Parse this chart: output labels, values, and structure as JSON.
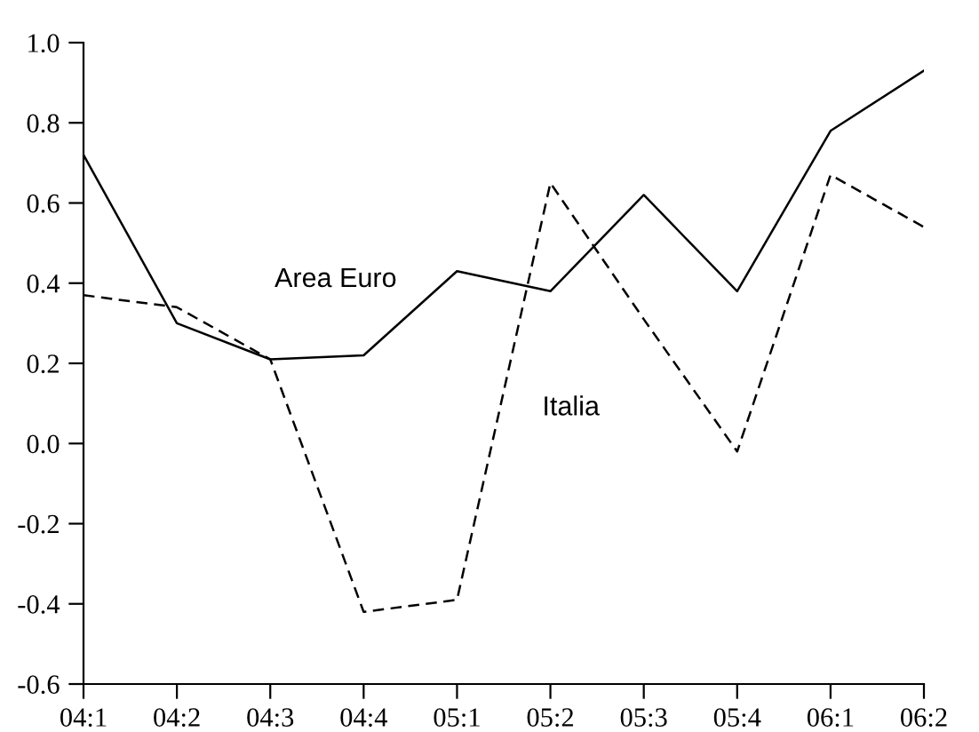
{
  "chart_data": {
    "type": "line",
    "categories": [
      "04:1",
      "04:2",
      "04:3",
      "04:4",
      "05:1",
      "05:2",
      "05:3",
      "05:4",
      "06:1",
      "06:2"
    ],
    "series": [
      {
        "name": "Area Euro",
        "color": "#000000",
        "line_style": "solid",
        "values": [
          0.72,
          0.3,
          0.21,
          0.22,
          0.43,
          0.38,
          0.62,
          0.38,
          0.78,
          0.93
        ]
      },
      {
        "name": "Italia",
        "color": "#000000",
        "line_style": "dashed",
        "values": [
          0.37,
          0.34,
          0.21,
          -0.42,
          -0.39,
          0.65,
          0.31,
          -0.02,
          0.67,
          0.54
        ]
      }
    ],
    "ylim": [
      -0.6,
      1.0
    ],
    "yticks": [
      {
        "value": -0.6,
        "label": "-0.6"
      },
      {
        "value": -0.4,
        "label": "-0.4"
      },
      {
        "value": -0.2,
        "label": "-0.2"
      },
      {
        "value": 0,
        "label": "0.0"
      },
      {
        "value": 0.2,
        "label": "0.2"
      },
      {
        "value": 0.4,
        "label": "0.4"
      },
      {
        "value": 0.6,
        "label": "0.6"
      },
      {
        "value": 0.8,
        "label": "0.8"
      },
      {
        "value": 1.0,
        "label": "1.0"
      }
    ],
    "grid": false,
    "legend": false,
    "marker": "none"
  }
}
